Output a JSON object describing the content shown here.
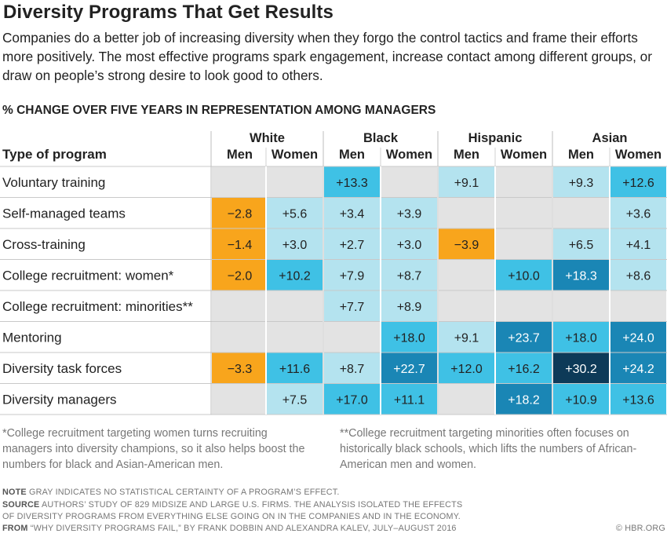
{
  "title": "Diversity Programs That Get Results",
  "subtitle": "Companies do a better job of increasing diversity when they forgo the control tactics and frame their efforts more positively. The most effective programs spark engagement, increase contact among different groups, or draw on people’s strong desire to look good to others.",
  "section_header": "% CHANGE OVER FIVE YEARS IN REPRESENTATION AMONG MANAGERS",
  "footnotes": {
    "women": "*College recruitment targeting women turns recruiting managers into diversity champions, so it also helps boost the numbers for black and Asian-American men.",
    "minorities": "**College recruitment targeting minorities often focuses on historically black schools, which lifts the numbers of African-American men and women."
  },
  "note": {
    "label": "NOTE",
    "text": " GRAY INDICATES NO STATISTICAL CERTAINTY OF A PROGRAM’S EFFECT."
  },
  "source": {
    "label": "SOURCE",
    "line1": " AUTHORS’ STUDY OF 829 MIDSIZE AND LARGE U.S. FIRMS. THE ANALYSIS ISOLATED THE EFFECTS",
    "line2": "OF DIVERSITY PROGRAMS FROM EVERYTHING ELSE GOING ON IN THE COMPANIES AND IN THE ECONOMY."
  },
  "from": {
    "label": "FROM",
    "text": "  “WHY DIVERSITY PROGRAMS FAIL,” BY FRANK DOBBIN AND ALEXANDRA KALEV, JULY–AUGUST 2016"
  },
  "credit": "© HBR.ORG",
  "colors": {
    "gray": "#e3e3e3",
    "negative": "#f8a51c",
    "light_blue": "#b4e3ef",
    "mid_blue": "#3fc1e5",
    "dark_blue": "#1a86b5",
    "darkest_blue": "#0d3a58"
  },
  "chart_data": {
    "type": "table",
    "title": "% CHANGE OVER FIVE YEARS IN REPRESENTATION AMONG MANAGERS",
    "row_header_label": "Type of program",
    "groups": [
      "White",
      "Black",
      "Hispanic",
      "Asian"
    ],
    "subgroups": [
      "Men",
      "Women"
    ],
    "columns": [
      "White Men",
      "White Women",
      "Black Men",
      "Black Women",
      "Hispanic Men",
      "Hispanic Women",
      "Asian Men",
      "Asian Women"
    ],
    "rows": [
      {
        "label": "Voluntary training",
        "values": [
          null,
          null,
          13.3,
          null,
          9.1,
          null,
          9.3,
          12.6
        ]
      },
      {
        "label": "Self-managed teams",
        "values": [
          -2.8,
          5.6,
          3.4,
          3.9,
          null,
          null,
          null,
          3.6
        ]
      },
      {
        "label": "Cross-training",
        "values": [
          -1.4,
          3.0,
          2.7,
          3.0,
          -3.9,
          null,
          6.5,
          4.1
        ]
      },
      {
        "label": "College recruitment: women*",
        "values": [
          -2.0,
          10.2,
          7.9,
          8.7,
          null,
          10.0,
          18.3,
          8.6
        ]
      },
      {
        "label": "College recruitment: minorities**",
        "values": [
          null,
          null,
          7.7,
          8.9,
          null,
          null,
          null,
          null
        ]
      },
      {
        "label": "Mentoring",
        "values": [
          null,
          null,
          null,
          18.0,
          9.1,
          23.7,
          18.0,
          24.0
        ]
      },
      {
        "label": "Diversity task forces",
        "values": [
          -3.3,
          11.6,
          8.7,
          22.7,
          12.0,
          16.2,
          30.2,
          24.2
        ]
      },
      {
        "label": "Diversity managers",
        "values": [
          null,
          7.5,
          17.0,
          11.1,
          null,
          18.2,
          10.9,
          13.6
        ]
      }
    ],
    "scale_note": "gray = no statistical certainty; orange = negative; darker blue = larger increase"
  }
}
